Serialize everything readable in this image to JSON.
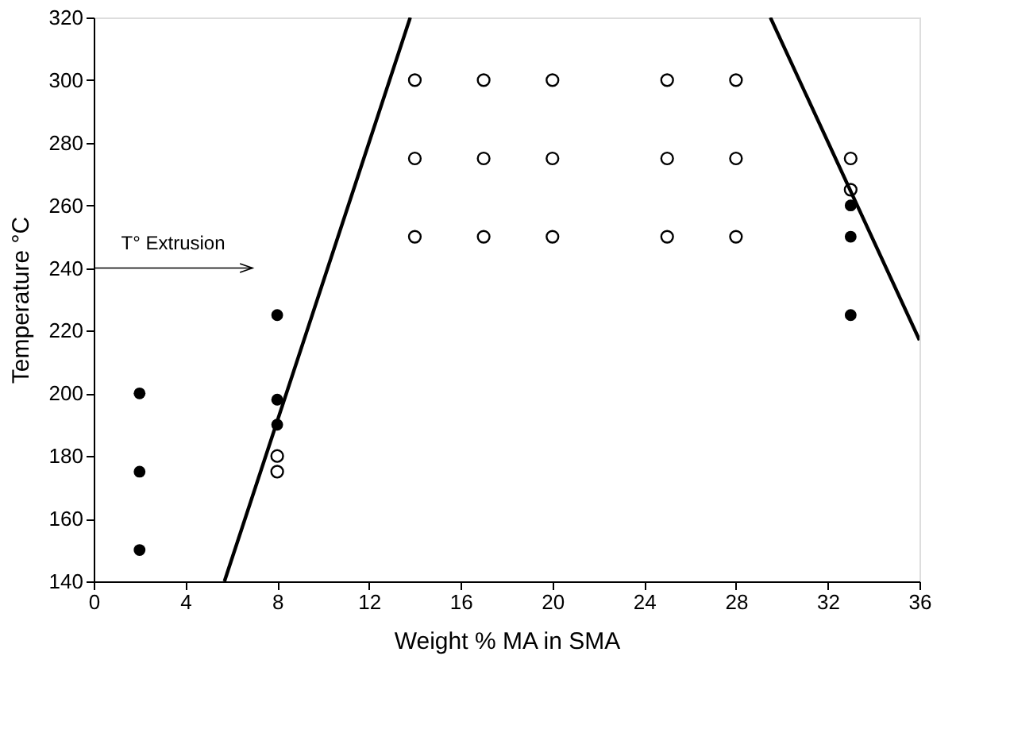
{
  "chart_data": {
    "type": "scatter",
    "xlabel": "Weight % MA in SMA",
    "ylabel": "Temperature °C",
    "xlim": [
      0,
      36
    ],
    "xticks": [
      0,
      4,
      8,
      12,
      16,
      20,
      24,
      28,
      32,
      36
    ],
    "ylim": [
      140,
      320
    ],
    "yticks": [
      140,
      160,
      180,
      200,
      220,
      240,
      260,
      280,
      300,
      320
    ],
    "grid": false,
    "marker": "circle",
    "ref_lines": [
      {
        "axis": "y",
        "value": 240,
        "label": "T° Extrusion",
        "color": "#000000"
      }
    ],
    "series": [
      {
        "color": "#000000",
        "x": [
          2,
          2,
          2,
          8,
          8,
          8,
          33,
          33,
          33
        ],
        "values": [
          200,
          175,
          150,
          225,
          198,
          190,
          260,
          250,
          225
        ]
      },
      {
        "color": "#000000",
        "x": [
          8,
          8,
          14,
          17,
          20,
          25,
          28,
          14,
          17,
          20,
          25,
          28,
          14,
          17,
          20,
          25,
          28,
          33,
          33
        ],
        "values": [
          180,
          175,
          300,
          300,
          300,
          300,
          300,
          275,
          275,
          275,
          275,
          275,
          250,
          250,
          250,
          250,
          250,
          275,
          265
        ]
      },
      {
        "type": "line",
        "marker": "none",
        "color": "#000000",
        "line_style": "solid",
        "x": [
          5.7,
          13.8
        ],
        "values": [
          140,
          320
        ]
      },
      {
        "type": "line",
        "marker": "none",
        "color": "#000000",
        "line_style": "solid",
        "x": [
          29.5,
          36
        ],
        "values": [
          320,
          217
        ]
      }
    ]
  }
}
